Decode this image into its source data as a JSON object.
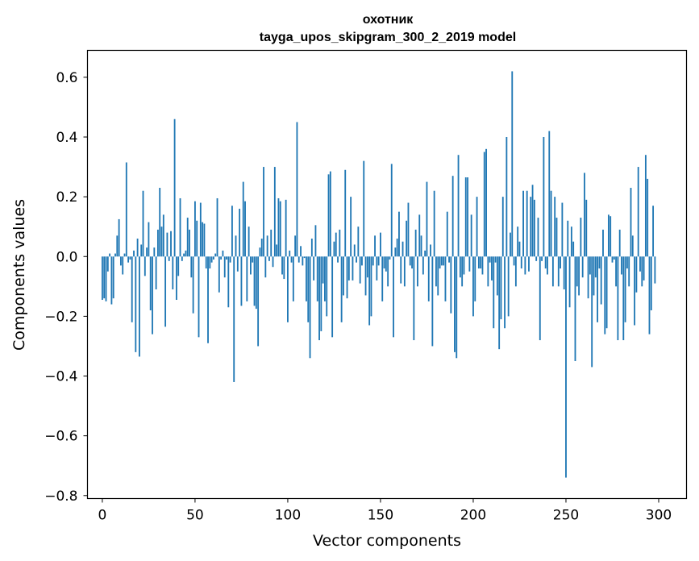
{
  "chart_data": {
    "type": "bar",
    "title": "охотник",
    "subtitle": "tayga_upos_skipgram_300_2_2019 model",
    "xlabel": "Vector components",
    "ylabel": "Components values",
    "xlim": [
      -8,
      315
    ],
    "ylim": [
      -0.81,
      0.69
    ],
    "x_ticks": [
      0,
      50,
      100,
      150,
      200,
      250,
      300
    ],
    "x_tick_labels": [
      "0",
      "50",
      "100",
      "150",
      "200",
      "250",
      "300"
    ],
    "y_ticks": [
      -0.8,
      -0.6,
      -0.4,
      -0.2,
      0.0,
      0.2,
      0.4,
      0.6
    ],
    "y_tick_labels": [
      "−0.8",
      "−0.6",
      "−0.4",
      "−0.2",
      "0.0",
      "0.2",
      "0.4",
      "0.6"
    ],
    "bar_color": "#1f77b4",
    "series": [
      {
        "name": "охотник",
        "x_start": 0,
        "values": [
          -0.145,
          -0.14,
          -0.15,
          -0.05,
          0.01,
          -0.16,
          -0.14,
          0.01,
          0.07,
          0.125,
          -0.03,
          -0.06,
          0.01,
          0.315,
          -0.02,
          -0.01,
          -0.22,
          0.02,
          -0.32,
          0.06,
          -0.335,
          0.04,
          0.22,
          -0.065,
          0.03,
          0.115,
          -0.18,
          -0.26,
          0.03,
          -0.11,
          0.09,
          0.23,
          0.1,
          0.14,
          -0.235,
          0.08,
          -0.015,
          0.085,
          -0.11,
          0.46,
          -0.145,
          -0.065,
          0.195,
          -0.015,
          0.01,
          0.02,
          0.13,
          0.09,
          -0.07,
          -0.19,
          0.185,
          0.12,
          -0.27,
          0.18,
          0.115,
          0.11,
          -0.04,
          -0.29,
          -0.04,
          -0.02,
          -0.01,
          0.01,
          0.195,
          -0.12,
          -0.01,
          0.02,
          -0.07,
          -0.01,
          -0.17,
          -0.02,
          0.17,
          -0.42,
          0.07,
          -0.05,
          0.16,
          -0.165,
          0.25,
          0.185,
          -0.15,
          0.1,
          -0.06,
          -0.02,
          -0.165,
          -0.175,
          -0.3,
          0.03,
          0.06,
          0.3,
          -0.07,
          0.07,
          -0.015,
          0.09,
          -0.035,
          0.3,
          0.04,
          0.195,
          0.185,
          -0.06,
          -0.075,
          0.19,
          -0.22,
          0.02,
          -0.02,
          -0.15,
          0.07,
          0.45,
          -0.02,
          0.035,
          -0.03,
          -0.005,
          -0.15,
          -0.22,
          -0.34,
          0.06,
          -0.08,
          0.105,
          -0.15,
          -0.28,
          -0.25,
          -0.09,
          -0.15,
          -0.2,
          0.275,
          0.285,
          -0.27,
          0.05,
          0.08,
          -0.02,
          0.09,
          -0.22,
          -0.13,
          0.29,
          -0.14,
          -0.08,
          0.2,
          -0.08,
          0.04,
          -0.02,
          0.1,
          -0.09,
          -0.03,
          0.32,
          -0.13,
          -0.07,
          -0.23,
          -0.2,
          -0.03,
          0.07,
          -0.08,
          -0.03,
          0.08,
          -0.15,
          -0.04,
          -0.05,
          -0.1,
          -0.01,
          0.31,
          -0.27,
          0.03,
          0.06,
          0.15,
          -0.09,
          0.05,
          -0.1,
          0.12,
          0.18,
          -0.03,
          -0.04,
          -0.28,
          0.09,
          -0.1,
          0.14,
          0.07,
          -0.06,
          0.02,
          0.25,
          -0.15,
          0.04,
          -0.3,
          0.22,
          -0.1,
          -0.13,
          -0.04,
          -0.03,
          -0.03,
          -0.15,
          0.15,
          -0.02,
          -0.19,
          0.27,
          -0.32,
          -0.34,
          0.34,
          -0.07,
          -0.1,
          -0.06,
          0.265,
          0.265,
          -0.05,
          0.14,
          -0.2,
          -0.15,
          0.2,
          -0.04,
          -0.04,
          -0.06,
          0.35,
          0.36,
          -0.1,
          -0.02,
          -0.08,
          -0.24,
          -0.02,
          -0.13,
          -0.31,
          -0.21,
          0.2,
          -0.24,
          0.4,
          -0.2,
          0.08,
          0.62,
          -0.03,
          -0.1,
          0.1,
          0.05,
          -0.04,
          0.22,
          -0.06,
          0.22,
          -0.05,
          0.2,
          0.24,
          0.19,
          -0.015,
          0.13,
          -0.28,
          -0.015,
          0.4,
          -0.04,
          -0.06,
          0.42,
          0.22,
          -0.1,
          0.2,
          0.13,
          -0.1,
          -0.04,
          0.18,
          -0.11,
          -0.74,
          0.12,
          -0.17,
          0.1,
          0.05,
          -0.35,
          -0.1,
          -0.13,
          0.13,
          -0.07,
          0.28,
          0.19,
          -0.14,
          -0.06,
          -0.37,
          -0.13,
          -0.07,
          -0.22,
          -0.04,
          -0.16,
          0.09,
          -0.26,
          -0.24,
          0.14,
          0.135,
          -0.02,
          -0.01,
          -0.1,
          -0.28,
          0.09,
          -0.06,
          -0.28,
          -0.22,
          -0.04,
          -0.1,
          0.23,
          0.07,
          -0.23,
          -0.12,
          0.3,
          -0.05,
          -0.1,
          -0.08,
          0.34,
          0.26,
          -0.26,
          -0.18,
          0.17,
          -0.09
        ]
      }
    ]
  }
}
